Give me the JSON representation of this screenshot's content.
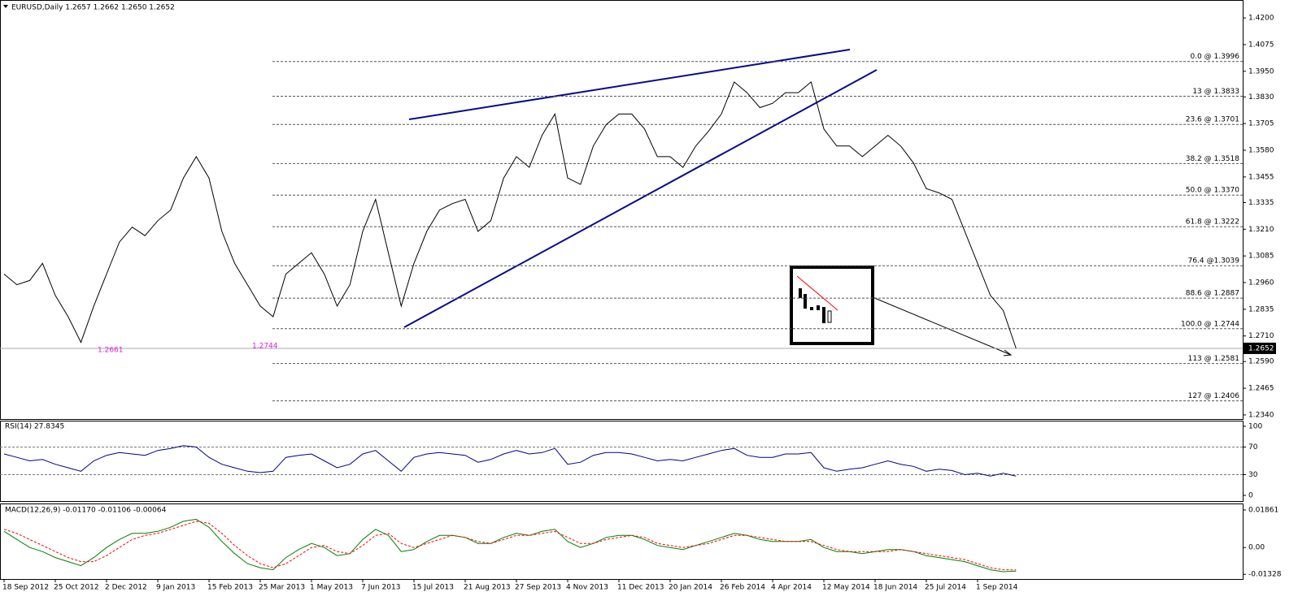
{
  "chart_data": [
    {
      "type": "line",
      "title": "EURUSD,Daily  1.2657 1.2662 1.2650 1.2652",
      "color": "#000000",
      "values": [
        1.3,
        1.295,
        1.297,
        1.305,
        1.29,
        1.28,
        1.268,
        1.285,
        1.3,
        1.315,
        1.322,
        1.318,
        1.325,
        1.33,
        1.345,
        1.355,
        1.345,
        1.32,
        1.305,
        1.295,
        1.285,
        1.28,
        1.3,
        1.305,
        1.31,
        1.3,
        1.285,
        1.295,
        1.32,
        1.335,
        1.31,
        1.285,
        1.305,
        1.32,
        1.33,
        1.333,
        1.335,
        1.32,
        1.325,
        1.345,
        1.355,
        1.35,
        1.365,
        1.375,
        1.345,
        1.342,
        1.36,
        1.37,
        1.375,
        1.375,
        1.368,
        1.355,
        1.355,
        1.35,
        1.36,
        1.367,
        1.375,
        1.39,
        1.385,
        1.378,
        1.38,
        1.385,
        1.385,
        1.39,
        1.368,
        1.36,
        1.36,
        1.355,
        1.36,
        1.365,
        1.36,
        1.352,
        1.34,
        1.338,
        1.335,
        1.32,
        1.305,
        1.29,
        1.283,
        1.2652
      ],
      "ylim": [
        1.2317,
        1.4284
      ],
      "yticks": [
        {
          "value": 1.42,
          "label": "1.4200"
        },
        {
          "value": 1.4075,
          "label": "1.4075"
        },
        {
          "value": 1.395,
          "label": "1.3950"
        },
        {
          "value": 1.383,
          "label": "1.3830"
        },
        {
          "value": 1.3705,
          "label": "1.3705"
        },
        {
          "value": 1.358,
          "label": "1.3580"
        },
        {
          "value": 1.3455,
          "label": "1.3455"
        },
        {
          "value": 1.3335,
          "label": "1.3335"
        },
        {
          "value": 1.321,
          "label": "1.3210"
        },
        {
          "value": 1.3085,
          "label": "1.3085"
        },
        {
          "value": 1.296,
          "label": "1.2960"
        },
        {
          "value": 1.2835,
          "label": "1.2835"
        },
        {
          "value": 1.271,
          "label": "1.2710"
        },
        {
          "value": 1.259,
          "label": "1.2590"
        },
        {
          "value": 1.2465,
          "label": "1.2465"
        },
        {
          "value": 1.234,
          "label": "1.2340"
        }
      ],
      "current": {
        "value": 1.2652,
        "label": "1.2652"
      },
      "levels": [
        {
          "value": 1.3996,
          "label": "0.0 @ 1.3996"
        },
        {
          "value": 1.3833,
          "label": "13 @ 1.3833"
        },
        {
          "value": 1.3701,
          "label": "23.6 @ 1.3701"
        },
        {
          "value": 1.3518,
          "label": "38.2 @ 1.3518"
        },
        {
          "value": 1.337,
          "label": "50.0 @ 1.3370"
        },
        {
          "value": 1.3222,
          "label": "61.8 @ 1.3222"
        },
        {
          "value": 1.3039,
          "label": "76.4 @1.3039"
        },
        {
          "value": 1.2887,
          "label": "88.6 @ 1.2887"
        },
        {
          "value": 1.2744,
          "label": "100.0 @ 1.2744"
        },
        {
          "value": 1.2581,
          "label": "113 @ 1.2581"
        },
        {
          "value": 1.2406,
          "label": "127 @ 1.2406"
        }
      ],
      "annotations": [
        "1.2661",
        "1.2744"
      ]
    },
    {
      "type": "line",
      "title": "RSI(14) 27.8345",
      "color": "#00008b",
      "values": [
        60,
        55,
        50,
        52,
        45,
        40,
        35,
        50,
        58,
        62,
        60,
        58,
        65,
        68,
        72,
        70,
        55,
        45,
        40,
        35,
        33,
        35,
        55,
        58,
        60,
        50,
        40,
        45,
        60,
        65,
        50,
        35,
        55,
        60,
        62,
        60,
        58,
        48,
        52,
        60,
        65,
        60,
        62,
        68,
        45,
        48,
        58,
        62,
        62,
        60,
        55,
        50,
        52,
        50,
        55,
        60,
        65,
        68,
        58,
        55,
        55,
        60,
        60,
        62,
        40,
        35,
        38,
        40,
        45,
        50,
        45,
        42,
        35,
        38,
        36,
        30,
        32,
        28,
        32,
        28
      ],
      "ylim": [
        -8.2,
        107
      ],
      "yticks": [
        100,
        70,
        30,
        0
      ],
      "levels": [
        70,
        30
      ]
    },
    {
      "type": "line",
      "title": "MACD(12,26,9) -0.01170 -0.01106 -0.00064",
      "categories": [
        "18 Sep 2012",
        null,
        null,
        null,
        "25 Oct 2012",
        null,
        null,
        null,
        "2 Dec 2012",
        null,
        null,
        null,
        "9 Jan 2013",
        null,
        null,
        null,
        "15 Feb 2013",
        null,
        null,
        null,
        "25 Mar 2013",
        null,
        null,
        null,
        "1 May 2013",
        null,
        null,
        null,
        "7 Jun 2013",
        null,
        null,
        null,
        "15 Jul 2013",
        null,
        null,
        null,
        "21 Aug 2013",
        null,
        null,
        null,
        "27 Sep 2013",
        null,
        null,
        null,
        "4 Nov 2013",
        null,
        null,
        null,
        "11 Dec 2013",
        null,
        null,
        null,
        "20 Jan 2014",
        null,
        null,
        null,
        "26 Feb 2014",
        null,
        null,
        null,
        "4 Apr 2014",
        null,
        null,
        null,
        "12 May 2014",
        null,
        null,
        null,
        "18 Jun 2014",
        null,
        null,
        null,
        "25 Jul 2014",
        null,
        null,
        null,
        "1 Sep 2014",
        null,
        null,
        null
      ],
      "series": [
        {
          "color": "#008000",
          "dash": false,
          "values": [
            0.008,
            0.004,
            0.0,
            -0.002,
            -0.005,
            -0.007,
            -0.009,
            -0.005,
            0.0,
            0.004,
            0.007,
            0.007,
            0.008,
            0.01,
            0.013,
            0.014,
            0.01,
            0.003,
            -0.003,
            -0.008,
            -0.01,
            -0.011,
            -0.005,
            -0.001,
            0.002,
            0.0,
            -0.004,
            -0.003,
            0.004,
            0.009,
            0.006,
            -0.002,
            -0.001,
            0.003,
            0.006,
            0.006,
            0.005,
            0.002,
            0.002,
            0.005,
            0.007,
            0.006,
            0.008,
            0.009,
            0.003,
            0.0,
            0.002,
            0.005,
            0.006,
            0.006,
            0.004,
            0.001,
            0.0,
            -0.001,
            0.001,
            0.003,
            0.005,
            0.007,
            0.006,
            0.004,
            0.003,
            0.003,
            0.003,
            0.004,
            0.0,
            -0.002,
            -0.002,
            -0.003,
            -0.002,
            -0.001,
            -0.001,
            -0.002,
            -0.004,
            -0.005,
            -0.006,
            -0.007,
            -0.009,
            -0.011,
            -0.012,
            -0.0117
          ]
        },
        {
          "color": "#ff0000",
          "dash": true,
          "values": [
            0.009,
            0.007,
            0.004,
            0.001,
            -0.002,
            -0.005,
            -0.007,
            -0.007,
            -0.004,
            0.0,
            0.004,
            0.006,
            0.007,
            0.009,
            0.011,
            0.013,
            0.012,
            0.007,
            0.001,
            -0.004,
            -0.008,
            -0.01,
            -0.008,
            -0.004,
            0.0,
            0.001,
            -0.002,
            -0.003,
            0.001,
            0.006,
            0.007,
            0.002,
            0.0,
            0.002,
            0.004,
            0.006,
            0.005,
            0.003,
            0.002,
            0.004,
            0.006,
            0.006,
            0.007,
            0.008,
            0.005,
            0.002,
            0.002,
            0.004,
            0.005,
            0.006,
            0.005,
            0.002,
            0.001,
            0.0,
            0.001,
            0.002,
            0.004,
            0.006,
            0.006,
            0.005,
            0.004,
            0.003,
            0.003,
            0.003,
            0.001,
            -0.001,
            -0.002,
            -0.002,
            -0.002,
            -0.002,
            -0.001,
            -0.002,
            -0.003,
            -0.004,
            -0.005,
            -0.006,
            -0.008,
            -0.01,
            -0.011,
            -0.0111
          ]
        }
      ],
      "ylim": [
        -0.0156,
        0.0214
      ],
      "yticks": [
        0.01861,
        {
          "value": 0,
          "label": "0.00"
        },
        -0.01328
      ]
    }
  ]
}
